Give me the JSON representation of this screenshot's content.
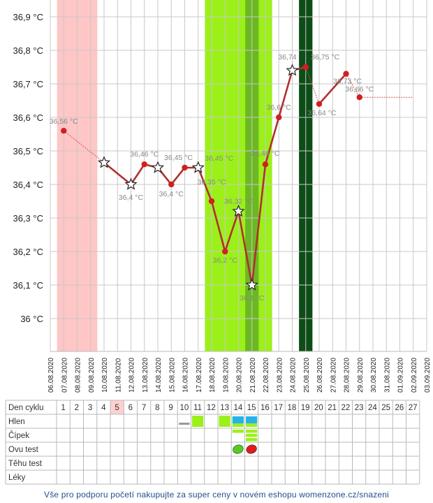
{
  "chart_data": {
    "type": "line",
    "unit": "°C",
    "y_axis": {
      "min": 35.9,
      "max": 36.95,
      "ticks": [
        36.0,
        36.1,
        36.2,
        36.3,
        36.4,
        36.5,
        36.6,
        36.7,
        36.8,
        36.9
      ],
      "tick_labels": [
        "36 °C",
        "36,1 °C",
        "36,2 °C",
        "36,3 °C",
        "36,4 °C",
        "36,5 °C",
        "36,6 °C",
        "36,7 °C",
        "36,8 °C",
        "36,9 °C"
      ]
    },
    "dates": [
      "06.08.2020",
      "07.08.2020",
      "08.08.2020",
      "09.08.2020",
      "10.08.2020",
      "11.08.2020",
      "12.08.2020",
      "13.08.2020",
      "14.08.2020",
      "15.08.2020",
      "16.08.2020",
      "17.08.2020",
      "18.08.2020",
      "19.08.2020",
      "20.08.2020",
      "21.08.2020",
      "22.08.2020",
      "23.08.2020",
      "24.08.2020",
      "25.08.2020",
      "26.08.2020",
      "27.08.2020",
      "28.08.2020",
      "29.08.2020",
      "30.08.2020",
      "31.08.2020",
      "01.09.2020",
      "02.09.2020",
      "03.09.2020"
    ],
    "bands": [
      {
        "from": "06.08.2020",
        "to": "09.08.2020",
        "color": "#ffc6c6",
        "meaning": "menstruation"
      },
      {
        "from": "17.08.2020",
        "to": "22.08.2020",
        "color": "#9cf01a",
        "meaning": "fertile window"
      },
      {
        "from": "20.08.2020",
        "to": "21.08.2020",
        "color": "#6cb823",
        "meaning": "peak"
      },
      {
        "from": "24.08.2020",
        "to": "25.08.2020",
        "color": "#0d4d17",
        "meaning": "ovulation"
      }
    ],
    "series": [
      {
        "points": [
          {
            "date": "07.08.2020",
            "value": 36.56,
            "label": "36,56 °C",
            "marker": "dot",
            "line": "thin"
          },
          {
            "date": "10.08.2020",
            "value": 36.465,
            "label": "",
            "marker": "star",
            "line": "thin"
          },
          {
            "date": "12.08.2020",
            "value": 36.4,
            "label": "36,4 °C",
            "marker": "star",
            "line": "thick"
          },
          {
            "date": "13.08.2020",
            "value": 36.46,
            "label": "36,46 °C",
            "marker": "dot",
            "line": "thick"
          },
          {
            "date": "14.08.2020",
            "value": 36.45,
            "label": "",
            "marker": "star",
            "line": "thick"
          },
          {
            "date": "15.08.2020",
            "value": 36.4,
            "label": "36,4 °C",
            "marker": "dot",
            "line": "thick"
          },
          {
            "date": "16.08.2020",
            "value": 36.45,
            "label": "36,45 °C",
            "marker": "dot",
            "line": "thick"
          },
          {
            "date": "17.08.2020",
            "value": 36.45,
            "label": "36,45 °C",
            "marker": "star",
            "line": "thick"
          },
          {
            "date": "18.08.2020",
            "value": 36.35,
            "label": "36,35 °C",
            "marker": "dot",
            "line": "thick"
          },
          {
            "date": "19.08.2020",
            "value": 36.2,
            "label": "36,2 °C",
            "marker": "dot",
            "line": "thick"
          },
          {
            "date": "20.08.2020",
            "value": 36.32,
            "label": "36,32 °C",
            "marker": "star",
            "line": "thick"
          },
          {
            "date": "21.08.2020",
            "value": 36.1,
            "label": "36,1 °C",
            "marker": "star",
            "line": "thick"
          },
          {
            "date": "22.08.2020",
            "value": 36.46,
            "label": "36,46 °C",
            "marker": "dot",
            "line": "thick"
          },
          {
            "date": "23.08.2020",
            "value": 36.6,
            "label": "36,6 °C",
            "marker": "dot",
            "line": "thick"
          },
          {
            "date": "24.08.2020",
            "value": 36.74,
            "label": "36,74",
            "marker": "star",
            "line": "thick"
          },
          {
            "date": "25.08.2020",
            "value": 36.75,
            "label": "36,75 °C",
            "marker": "dot",
            "line": "thick"
          },
          {
            "date": "26.08.2020",
            "value": 36.64,
            "label": "36,64 °C",
            "marker": "dot",
            "line": "thin"
          },
          {
            "date": "28.08.2020",
            "value": 36.73,
            "label": "36,73 °C",
            "marker": "dot",
            "line": "thick"
          },
          {
            "date": "29.08.2020",
            "value": 36.66,
            "label": "36,66 °C",
            "marker": "dot",
            "line": "thin"
          }
        ],
        "extension_to": "02.09.2020"
      }
    ],
    "table": {
      "row_labels": [
        "Den cyklu",
        "Hlen",
        "Čípek",
        "Ovu test",
        "Těhu test",
        "Léky"
      ],
      "cycle_days": [
        "1",
        "2",
        "3",
        "4",
        "5",
        "6",
        "7",
        "8",
        "9",
        "10",
        "11",
        "12",
        "13",
        "14",
        "15",
        "16",
        "17",
        "18",
        "19",
        "20",
        "21",
        "22",
        "23",
        "24",
        "25",
        "26",
        "27"
      ],
      "highlight_day": "5",
      "highlight_color": "#ffd0d0",
      "hlen": [
        {
          "day": "10",
          "kind": "dry",
          "color": "#999999"
        },
        {
          "day": "11",
          "kind": "fertile",
          "color": "#9cf01a"
        },
        {
          "day": "13",
          "kind": "fertile",
          "color": "#9cf01a"
        },
        {
          "day": "14",
          "kind": "egg-white",
          "color": "#27b2ec"
        },
        {
          "day": "15",
          "kind": "egg-white",
          "color": "#27b2ec"
        }
      ],
      "cipek": [
        {
          "day": "14",
          "level": 1,
          "color": "#9cf01a"
        },
        {
          "day": "15",
          "level": 3,
          "color": "#9cf01a"
        }
      ],
      "ovu_test": [
        {
          "day": "14",
          "result": "negative",
          "color": "#55cc22"
        },
        {
          "day": "15",
          "result": "positive",
          "color": "#e01b1b"
        }
      ]
    }
  },
  "footer": {
    "text": "Vše pro podporu početí nakupujte za super ceny v novém eshopu womenzone.cz/snazeni"
  }
}
